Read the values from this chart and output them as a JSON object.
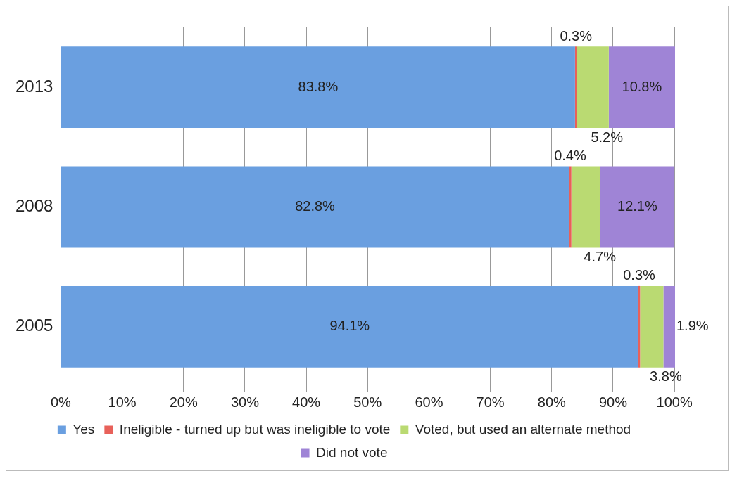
{
  "chart_data": {
    "type": "bar",
    "orientation": "horizontal",
    "stacked": true,
    "categories": [
      "2013",
      "2008",
      "2005"
    ],
    "series": [
      {
        "name": "Yes",
        "color": "#6a9fe0",
        "values": [
          83.8,
          82.8,
          94.1
        ],
        "value_labels": [
          "83.8%",
          "82.8%",
          "94.1%"
        ]
      },
      {
        "name": "Ineligible - turned up but was ineligible to vote",
        "color": "#e8615a",
        "values": [
          0.3,
          0.4,
          0.3
        ],
        "value_labels": [
          "0.3%",
          "0.4%",
          "0.3%"
        ]
      },
      {
        "name": "Voted, but used an alternate method",
        "color": "#bada72",
        "values": [
          5.2,
          4.7,
          3.8
        ],
        "value_labels": [
          "5.2%",
          "4.7%",
          "3.8%"
        ]
      },
      {
        "name": "Did not vote",
        "color": "#9f84d6",
        "values": [
          10.8,
          12.1,
          1.9
        ],
        "value_labels": [
          "10.8%",
          "12.1%",
          "1.9%"
        ]
      }
    ],
    "xlim": [
      0,
      100.1
    ],
    "xticks": [
      {
        "value": 0,
        "label": "0%"
      },
      {
        "value": 10,
        "label": "10%"
      },
      {
        "value": 20,
        "label": "20%"
      },
      {
        "value": 30,
        "label": "30%"
      },
      {
        "value": 40,
        "label": "40%"
      },
      {
        "value": 50,
        "label": "50%"
      },
      {
        "value": 60,
        "label": "60%"
      },
      {
        "value": 70,
        "label": "70%"
      },
      {
        "value": 80,
        "label": "80%"
      },
      {
        "value": 90,
        "label": "90%"
      },
      {
        "value": 100,
        "label": "100%"
      }
    ],
    "grid": "x",
    "legend": "bottom"
  }
}
